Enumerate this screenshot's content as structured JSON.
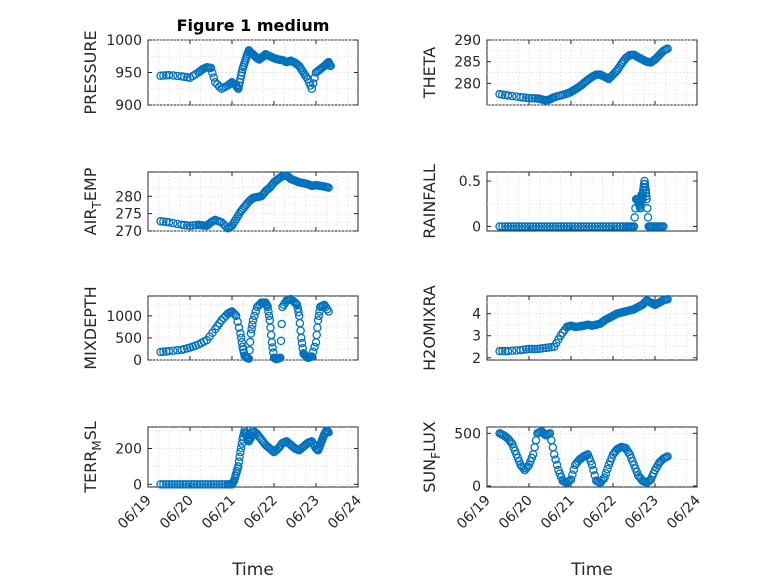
{
  "chart_data": [
    {
      "type": "scatter",
      "title": "Figure 1 medium",
      "ylabel": "PRESSURE",
      "xlabel": "",
      "ylim": [
        900,
        1000
      ],
      "yticks": [
        900,
        950,
        1000
      ],
      "x": [
        0.3,
        0.5,
        0.8,
        1.0,
        1.2,
        1.3,
        1.4,
        1.5,
        1.6,
        1.75,
        1.9,
        2.0,
        2.1,
        2.15,
        2.2,
        2.25,
        2.3,
        2.35,
        2.4,
        2.45,
        2.5,
        2.55,
        2.6,
        2.65,
        2.7,
        2.75,
        2.8,
        2.9,
        3.0,
        3.1,
        3.2,
        3.3,
        3.4,
        3.5,
        3.6,
        3.7,
        3.8,
        3.9,
        4.0,
        4.1,
        4.2,
        4.25,
        4.3,
        4.35
      ],
      "y": [
        945,
        946,
        944,
        942,
        950,
        955,
        958,
        957,
        935,
        925,
        930,
        935,
        930,
        925,
        940,
        955,
        965,
        975,
        984,
        980,
        978,
        975,
        972,
        970,
        973,
        975,
        978,
        975,
        972,
        970,
        969,
        966,
        968,
        965,
        960,
        950,
        940,
        925,
        950,
        955,
        960,
        963,
        966,
        960
      ]
    },
    {
      "type": "scatter",
      "ylabel": "THETA",
      "xlabel": "",
      "ylim": [
        275,
        290
      ],
      "yticks": [
        280,
        285,
        290
      ],
      "x": [
        0.3,
        0.5,
        0.8,
        1.0,
        1.2,
        1.3,
        1.4,
        1.5,
        1.6,
        1.75,
        1.9,
        2.0,
        2.1,
        2.2,
        2.3,
        2.4,
        2.5,
        2.6,
        2.7,
        2.8,
        2.9,
        3.0,
        3.1,
        3.2,
        3.3,
        3.4,
        3.5,
        3.6,
        3.7,
        3.8,
        3.9,
        4.0,
        4.1,
        4.2,
        4.3
      ],
      "y": [
        277.5,
        277.2,
        276.8,
        276.6,
        276.5,
        276.3,
        276.0,
        276.3,
        276.8,
        277.2,
        277.6,
        278.0,
        278.6,
        279.2,
        280.0,
        280.8,
        281.5,
        282.0,
        282.0,
        281.5,
        281.0,
        282.0,
        283.0,
        284.5,
        285.8,
        286.5,
        286.6,
        286.0,
        285.5,
        285.0,
        284.8,
        285.5,
        286.5,
        287.5,
        288.0
      ]
    },
    {
      "type": "scatter",
      "ylabel": "AIR_TEMP",
      "xlabel": "",
      "ylim": [
        270,
        287
      ],
      "yticks": [
        270,
        275,
        280
      ],
      "x": [
        0.3,
        0.5,
        0.8,
        1.0,
        1.2,
        1.3,
        1.4,
        1.5,
        1.6,
        1.75,
        1.9,
        2.0,
        2.1,
        2.2,
        2.3,
        2.4,
        2.5,
        2.6,
        2.7,
        2.8,
        2.9,
        3.0,
        3.1,
        3.2,
        3.3,
        3.4,
        3.5,
        3.6,
        3.7,
        3.8,
        3.9,
        4.0,
        4.1,
        4.2,
        4.3
      ],
      "y": [
        272.8,
        272.5,
        271.8,
        271.5,
        271.8,
        271.6,
        271.5,
        272.5,
        273.2,
        272.5,
        270.8,
        271.5,
        273.5,
        275.5,
        277.0,
        278.5,
        279.5,
        279.8,
        280.0,
        281.5,
        282.5,
        284.0,
        285.0,
        285.8,
        286.0,
        285.0,
        284.5,
        284.0,
        283.8,
        283.5,
        283.0,
        283.2,
        283.0,
        282.8,
        282.5
      ]
    },
    {
      "type": "scatter",
      "ylabel": "RAINFALL",
      "xlabel": "",
      "ylim": [
        -0.05,
        0.6
      ],
      "yticks": [
        0,
        0.5
      ],
      "x": [
        0.3,
        0.5,
        0.7,
        0.9,
        1.1,
        1.3,
        1.5,
        1.7,
        1.9,
        2.1,
        2.3,
        2.5,
        2.7,
        2.9,
        3.1,
        3.3,
        3.4,
        3.5,
        3.55,
        3.6,
        3.62,
        3.65,
        3.68,
        3.7,
        3.72,
        3.75,
        3.78,
        3.8,
        3.85,
        3.9,
        4.0,
        4.1,
        4.2
      ],
      "y": [
        0,
        0,
        0,
        0,
        0,
        0,
        0,
        0,
        0,
        0,
        0,
        0,
        0,
        0,
        0,
        0,
        0,
        0,
        0.3,
        0.3,
        0.25,
        0.2,
        0.35,
        0.3,
        0.4,
        0.5,
        0.4,
        0.3,
        0,
        0,
        0,
        0,
        0
      ]
    },
    {
      "type": "scatter",
      "ylabel": "MIXDEPTH",
      "xlabel": "",
      "ylim": [
        0,
        1450
      ],
      "yticks": [
        0,
        500,
        1000
      ],
      "x": [
        0.3,
        0.5,
        0.8,
        1.0,
        1.2,
        1.4,
        1.6,
        1.75,
        1.9,
        2.0,
        2.1,
        2.2,
        2.25,
        2.3,
        2.35,
        2.4,
        2.45,
        2.5,
        2.6,
        2.7,
        2.8,
        2.85,
        2.9,
        2.95,
        3.0,
        3.05,
        3.1,
        3.15,
        3.2,
        3.3,
        3.4,
        3.5,
        3.55,
        3.6,
        3.65,
        3.7,
        3.75,
        3.8,
        3.85,
        3.9,
        4.0,
        4.05,
        4.1,
        4.2,
        4.3
      ],
      "y": [
        180,
        200,
        230,
        280,
        350,
        450,
        700,
        900,
        1050,
        1100,
        1000,
        600,
        300,
        100,
        50,
        30,
        600,
        900,
        1200,
        1300,
        1300,
        1200,
        900,
        400,
        50,
        20,
        30,
        50,
        1200,
        1350,
        1380,
        1300,
        1250,
        1000,
        500,
        150,
        100,
        50,
        60,
        80,
        400,
        900,
        1200,
        1250,
        1100
      ]
    },
    {
      "type": "scatter",
      "ylabel": "H2OMIXRA",
      "xlabel": "",
      "ylim": [
        1.9,
        4.8
      ],
      "yticks": [
        2,
        3,
        4
      ],
      "x": [
        0.3,
        0.5,
        0.8,
        1.0,
        1.2,
        1.4,
        1.6,
        1.75,
        1.9,
        2.0,
        2.1,
        2.2,
        2.3,
        2.4,
        2.5,
        2.6,
        2.7,
        2.8,
        2.9,
        3.0,
        3.1,
        3.2,
        3.3,
        3.4,
        3.5,
        3.6,
        3.7,
        3.8,
        3.9,
        4.0,
        4.1,
        4.2,
        4.3
      ],
      "y": [
        2.3,
        2.3,
        2.35,
        2.4,
        2.4,
        2.45,
        2.5,
        3.0,
        3.4,
        3.45,
        3.4,
        3.42,
        3.45,
        3.5,
        3.45,
        3.5,
        3.55,
        3.7,
        3.8,
        3.9,
        4.0,
        4.05,
        4.1,
        4.15,
        4.2,
        4.3,
        4.4,
        4.6,
        4.5,
        4.4,
        4.5,
        4.6,
        4.65
      ]
    },
    {
      "type": "scatter",
      "ylabel": "TERR_MSL",
      "xlabel": "Time",
      "ylim": [
        -15,
        320
      ],
      "yticks": [
        0,
        200
      ],
      "xticklabels": [
        "06/19",
        "06/20",
        "06/21",
        "06/22",
        "06/23",
        "06/24"
      ],
      "x": [
        0.3,
        0.5,
        0.7,
        0.9,
        1.1,
        1.3,
        1.5,
        1.7,
        1.9,
        2.0,
        2.05,
        2.1,
        2.15,
        2.2,
        2.25,
        2.3,
        2.35,
        2.4,
        2.45,
        2.5,
        2.6,
        2.7,
        2.8,
        2.9,
        3.0,
        3.1,
        3.2,
        3.3,
        3.4,
        3.5,
        3.6,
        3.7,
        3.8,
        3.9,
        4.0,
        4.05,
        4.1,
        4.15,
        4.2,
        4.25,
        4.3
      ],
      "y": [
        0,
        0,
        0,
        0,
        0,
        0,
        0,
        0,
        0,
        0,
        20,
        60,
        100,
        180,
        250,
        300,
        270,
        240,
        260,
        300,
        280,
        250,
        220,
        200,
        180,
        200,
        230,
        240,
        220,
        200,
        190,
        210,
        230,
        240,
        200,
        190,
        220,
        250,
        280,
        300,
        290
      ]
    },
    {
      "type": "scatter",
      "ylabel": "SUN_FLUX",
      "xlabel": "Time",
      "ylim": [
        -10,
        560
      ],
      "yticks": [
        0,
        500
      ],
      "xticklabels": [
        "06/19",
        "06/20",
        "06/21",
        "06/22",
        "06/23",
        "06/24"
      ],
      "x": [
        0.3,
        0.4,
        0.5,
        0.6,
        0.7,
        0.8,
        0.9,
        1.0,
        1.1,
        1.2,
        1.3,
        1.4,
        1.5,
        1.6,
        1.7,
        1.8,
        1.9,
        2.0,
        2.1,
        2.2,
        2.3,
        2.4,
        2.5,
        2.6,
        2.7,
        2.8,
        2.9,
        3.0,
        3.1,
        3.2,
        3.3,
        3.4,
        3.5,
        3.6,
        3.7,
        3.8,
        3.9,
        4.0,
        4.1,
        4.2,
        4.3
      ],
      "y": [
        500,
        480,
        450,
        400,
        300,
        200,
        150,
        200,
        300,
        500,
        520,
        480,
        500,
        300,
        150,
        50,
        30,
        60,
        200,
        250,
        280,
        300,
        200,
        50,
        30,
        80,
        200,
        300,
        350,
        370,
        360,
        300,
        200,
        100,
        50,
        30,
        60,
        150,
        220,
        260,
        280
      ]
    }
  ]
}
